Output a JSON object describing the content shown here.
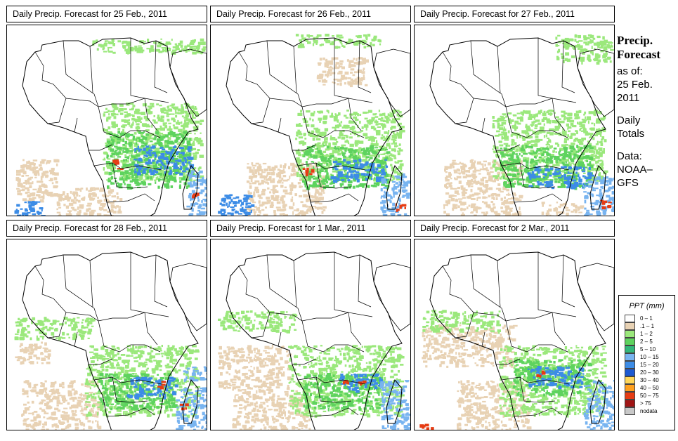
{
  "panels": [
    {
      "title": "Daily Precip. Forecast for  25 Feb., 2011"
    },
    {
      "title": "Daily Precip. Forecast for  26 Feb., 2011"
    },
    {
      "title": "Daily Precip. Forecast for  27 Feb., 2011"
    },
    {
      "title": "Daily Precip. Forecast for  28 Feb., 2011"
    },
    {
      "title": "Daily Precip. Forecast for  1 Mar., 2011"
    },
    {
      "title": "Daily Precip. Forecast for  2 Mar., 2011"
    }
  ],
  "side": {
    "heading1": "Precip.",
    "heading2": "Forecast",
    "asof_label": "as of:",
    "date1": "25 Feb.",
    "date2": "2011",
    "totals1": "Daily",
    "totals2": "Totals",
    "data1": "Data:",
    "data2": "NOAA–",
    "data3": "GFS"
  },
  "legend": {
    "title": "PPT (mm)",
    "items": [
      {
        "label": "0 – 1",
        "color": "#ffffff"
      },
      {
        "label": ".1 – 1",
        "color": "#e8d2b4"
      },
      {
        "label": "1 – 2",
        "color": "#9be87c"
      },
      {
        "label": "2 – 5",
        "color": "#5ed35e"
      },
      {
        "label": "5 – 10",
        "color": "#32b87a"
      },
      {
        "label": "10 – 15",
        "color": "#78b4f0"
      },
      {
        "label": "15 – 20",
        "color": "#3c8ce6"
      },
      {
        "label": "20 – 30",
        "color": "#1e5ad2"
      },
      {
        "label": "30 – 40",
        "color": "#ffd75a"
      },
      {
        "label": "40 – 50",
        "color": "#ffa01e"
      },
      {
        "label": "50 – 75",
        "color": "#e63c14"
      },
      {
        "label": "> 75",
        "color": "#a01414"
      },
      {
        "label": "nodata",
        "color": "#c8c8c8"
      }
    ]
  }
}
